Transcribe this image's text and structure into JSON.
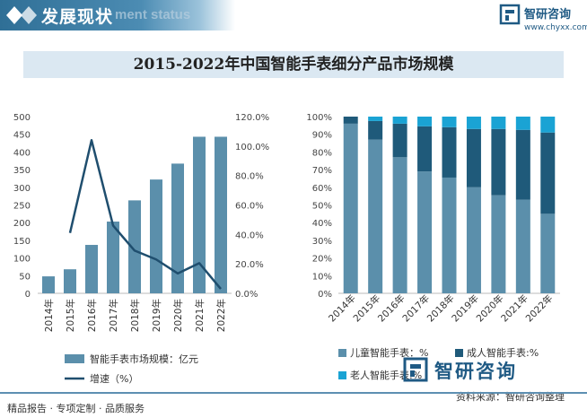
{
  "header": {
    "title": "发展现状",
    "watermark": "ment status",
    "brand_name": "智研咨询",
    "brand_url": "www.chyxx.com"
  },
  "chart_title": "2015-2022年中国智能手表细分产品市场规模",
  "chart_data": [
    {
      "type": "bar",
      "categories": [
        "2014年",
        "2015年",
        "2016年",
        "2017年",
        "2018年",
        "2019年",
        "2020年",
        "2021年",
        "2022年"
      ],
      "series": [
        {
          "name": "智能手表市场规模：亿元",
          "type": "bar",
          "axis": "left",
          "color": "#5b8fab",
          "values": [
            48,
            68,
            137,
            203,
            263,
            322,
            367,
            443,
            443
          ]
        },
        {
          "name": "增速（%）",
          "type": "line",
          "axis": "right",
          "color": "#1f4e6e",
          "values": [
            null,
            41,
            104,
            46,
            29,
            23,
            13.5,
            20.5,
            3
          ]
        }
      ],
      "yleft": {
        "min": 0,
        "max": 500,
        "step": 50,
        "ticks": [
          "0",
          "50",
          "100",
          "150",
          "200",
          "250",
          "300",
          "350",
          "400",
          "450",
          "500"
        ]
      },
      "yright": {
        "min": 0,
        "max": 120,
        "step": 20,
        "ticks": [
          "0.0%",
          "20.0%",
          "40.0%",
          "60.0%",
          "80.0%",
          "100.0%",
          "120.0%"
        ]
      },
      "legend_position": "bottom"
    },
    {
      "type": "bar",
      "stacked": true,
      "categories": [
        "2014年",
        "2015年",
        "2016年",
        "2017年",
        "2018年",
        "2019年",
        "2020年",
        "2021年",
        "2022年"
      ],
      "series": [
        {
          "name": "儿童智能手表：%",
          "color": "#5b8fab",
          "values": [
            96,
            87,
            77,
            69,
            65.5,
            60,
            55.5,
            53,
            45
          ]
        },
        {
          "name": "成人智能手表:%",
          "color": "#1f5a7a",
          "values": [
            4,
            10.5,
            19,
            25.5,
            28.5,
            33,
            37.5,
            39.5,
            46
          ]
        },
        {
          "name": "老人智能手表:%",
          "color": "#1aa3d4",
          "values": [
            0,
            2.5,
            4,
            5.5,
            6,
            7,
            7,
            7.5,
            9
          ]
        }
      ],
      "y": {
        "min": 0,
        "max": 100,
        "step": 10,
        "ticks": [
          "0%",
          "10%",
          "20%",
          "30%",
          "40%",
          "50%",
          "60%",
          "70%",
          "80%",
          "90%",
          "100%"
        ]
      },
      "legend_position": "bottom"
    }
  ],
  "footer": {
    "left": "精品报告 · 专项定制 · 品质服务",
    "brand": "智研咨询",
    "source": "资料来源：智研咨询整理"
  }
}
